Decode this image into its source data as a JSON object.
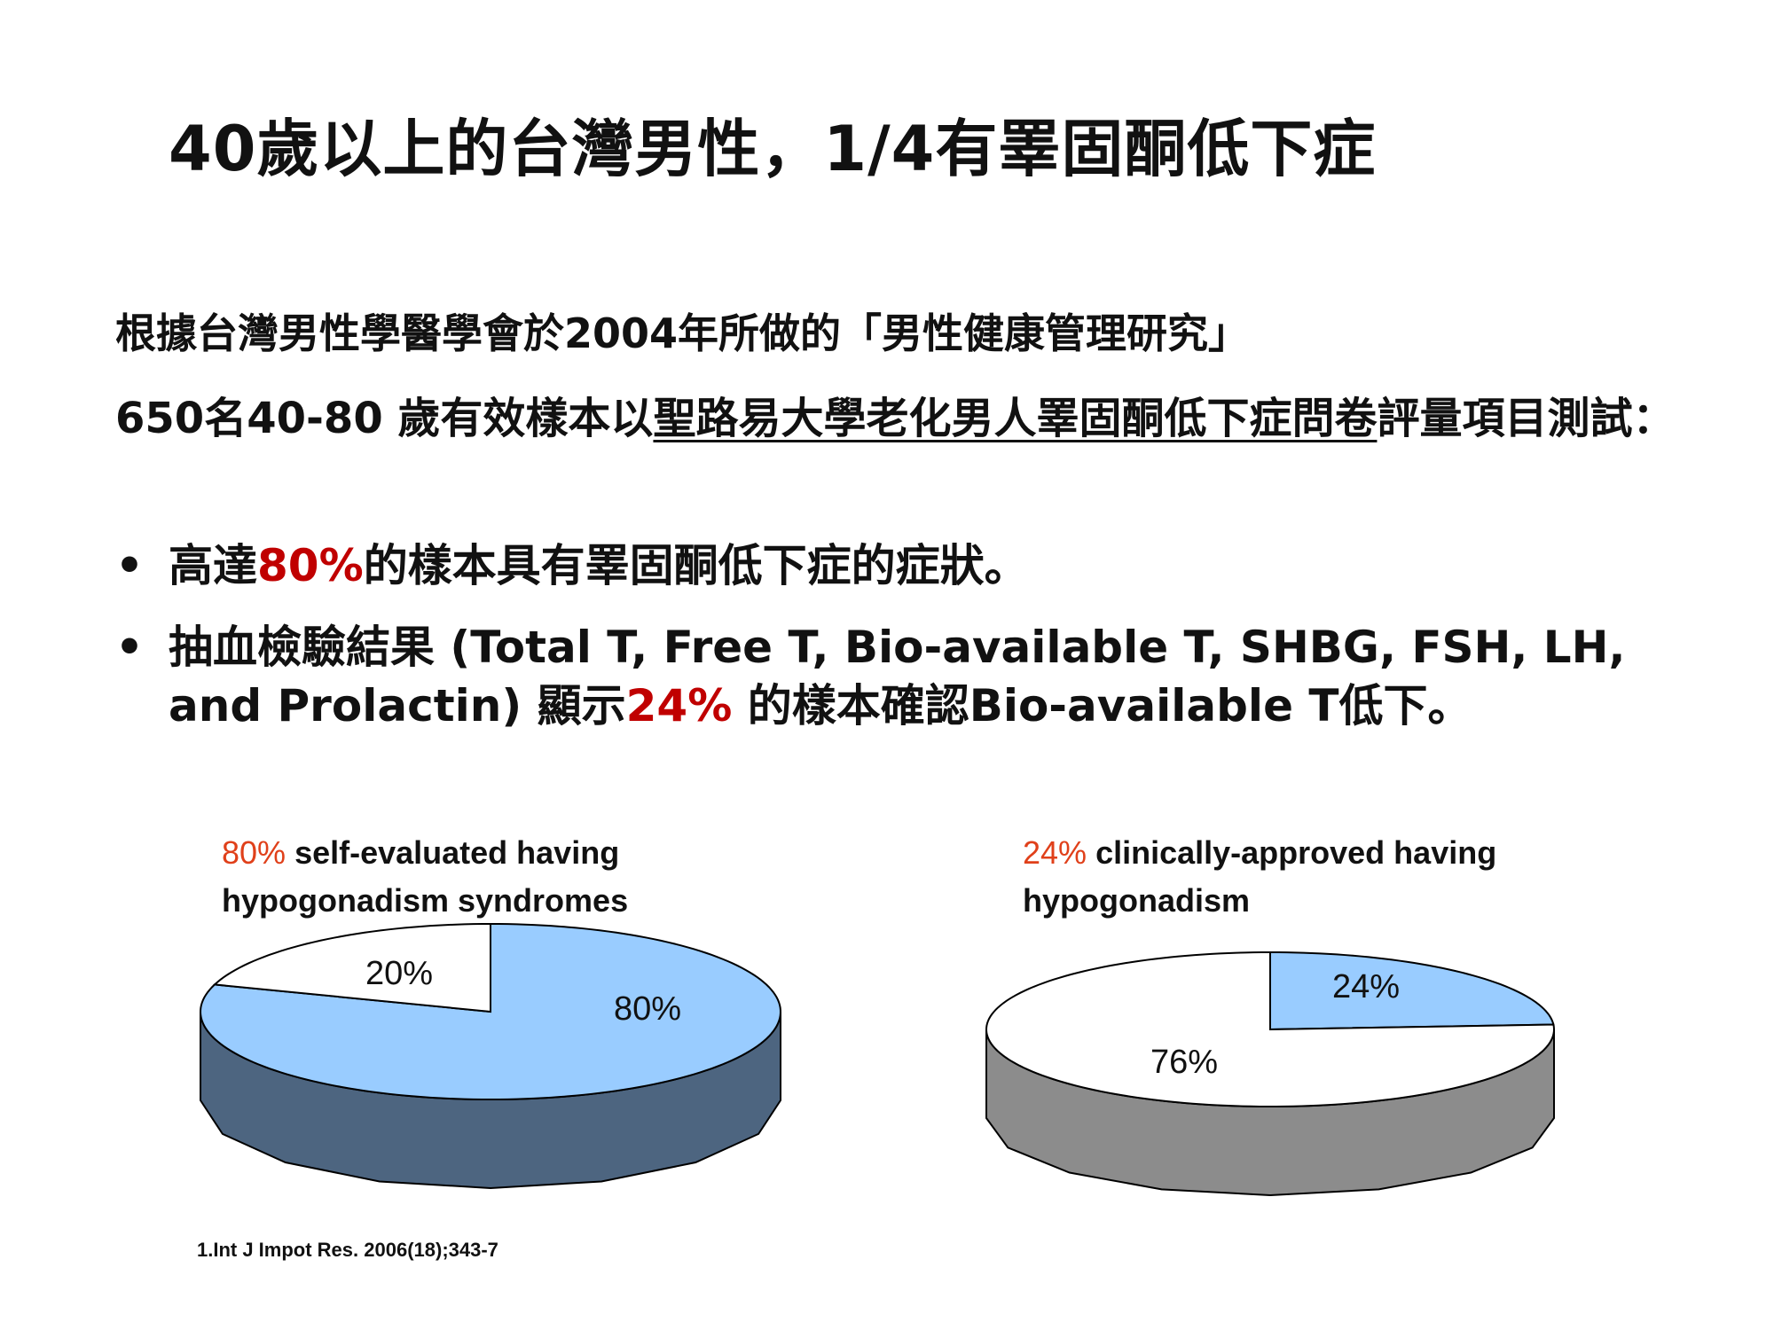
{
  "slide": {
    "title": "40歲以上的台灣男性，1/4有睪固酮低下症",
    "intro": "根據台灣男性學醫學會於2004年所做的「男性健康管理研究」",
    "method_prefix": "650名40-80 歲有效樣本以",
    "method_underlined": "聖路易大學老化男人睪固酮低下症問卷",
    "method_suffix": "評量項目測試：",
    "bullet_char": "•",
    "bullet1_pre": "高達",
    "bullet1_hl": "80%",
    "bullet1_post": "的樣本具有睪固酮低下症的症狀。",
    "bullet2_pre": "抽血檢驗結果 (Total T, Free T, Bio-available T, SHBG, FSH, LH, and Prolactin) 顯示",
    "bullet2_hl": "24%",
    "bullet2_post": " 的樣本確認Bio-available T低下。",
    "footnote": "1.Int J Impot Res. 2006(18);343-7"
  },
  "chart_data": [
    {
      "type": "pie",
      "title_pct": "80%",
      "title_line1": " self-evaluated having",
      "title_line2": "hypogonadism syndromes",
      "slices": [
        {
          "label": "80%",
          "value": 80,
          "top_color": "#99ccff",
          "side_color": "#4d6580"
        },
        {
          "label": "20%",
          "value": 20,
          "top_color": "#ffffff",
          "side_color": "#ffffff"
        }
      ]
    },
    {
      "type": "pie",
      "title_pct": "24%",
      "title_line1": " clinically-approved having",
      "title_line2": "hypogonadism",
      "slices": [
        {
          "label": "24%",
          "value": 24,
          "top_color": "#99ccff",
          "side_color": "#8ab0d8"
        },
        {
          "label": "76%",
          "value": 76,
          "top_color": "#ffffff",
          "side_color": "#8c8c8c"
        }
      ]
    }
  ]
}
